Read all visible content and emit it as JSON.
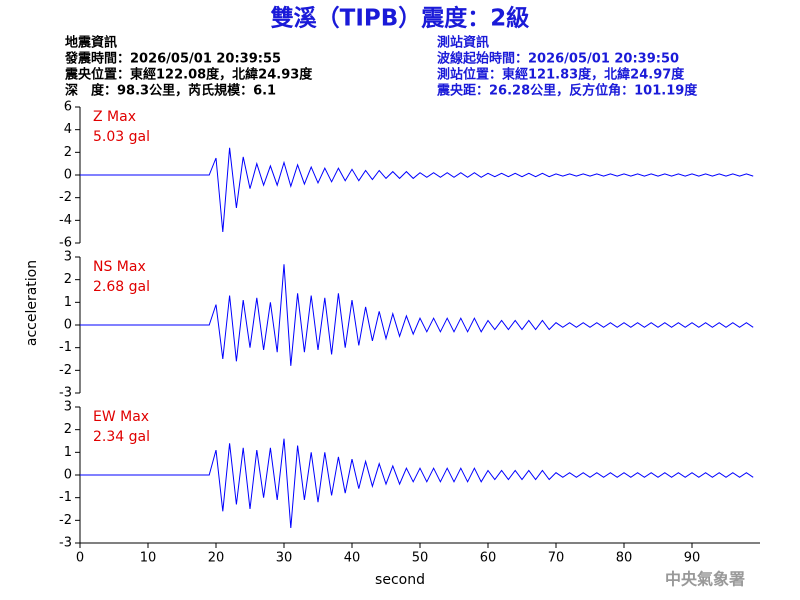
{
  "header": {
    "title": "雙溪（TIPB）震度：2級",
    "left": [
      "地震資訊",
      "發震時間：2026/05/01 20:39:55",
      "震央位置：東經122.08度，北緯24.93度",
      "深　度：98.3公里，芮氏規模：6.1"
    ],
    "right": [
      "測站資訊",
      "波線起始時間：2026/05/01 20:39:50",
      "測站位置：東經121.83度，北緯24.97度",
      "震央距：26.28公里，反方位角：101.19度"
    ]
  },
  "footer": "中央氣象署",
  "chart_data": [
    {
      "type": "line",
      "annotation": [
        "Z Max",
        "5.03 gal"
      ],
      "color": "#0000ff",
      "xlim": [
        0,
        100
      ],
      "ylim": [
        -6,
        6
      ],
      "yticks": [
        -6,
        -4,
        -2,
        0,
        2,
        4,
        6
      ],
      "x": [
        0,
        1,
        2,
        3,
        4,
        5,
        6,
        7,
        8,
        9,
        10,
        11,
        12,
        13,
        14,
        15,
        16,
        17,
        18,
        19,
        20,
        21,
        22,
        23,
        24,
        25,
        26,
        27,
        28,
        29,
        30,
        31,
        32,
        33,
        34,
        35,
        36,
        37,
        38,
        39,
        40,
        41,
        42,
        43,
        44,
        45,
        46,
        47,
        48,
        49,
        50,
        51,
        52,
        53,
        54,
        55,
        56,
        57,
        58,
        59,
        60,
        61,
        62,
        63,
        64,
        65,
        66,
        67,
        68,
        69,
        70,
        71,
        72,
        73,
        74,
        75,
        76,
        77,
        78,
        79,
        80,
        81,
        82,
        83,
        84,
        85,
        86,
        87,
        88,
        89,
        90,
        91,
        92,
        93,
        94,
        95,
        96,
        97,
        98,
        99
      ],
      "values": [
        0,
        0,
        0,
        0,
        0,
        0,
        0,
        0,
        0,
        0,
        0,
        0,
        0,
        0,
        0,
        0,
        0,
        0,
        0,
        0,
        1.5,
        -5.03,
        2.4,
        -2.9,
        1.6,
        -1.2,
        1.0,
        -0.9,
        0.8,
        -0.9,
        1.1,
        -1.0,
        0.9,
        -0.8,
        0.7,
        -0.7,
        0.6,
        -0.6,
        0.6,
        -0.5,
        0.5,
        -0.5,
        0.4,
        -0.4,
        0.4,
        -0.3,
        0.3,
        -0.3,
        0.3,
        -0.3,
        0.2,
        -0.2,
        0.2,
        -0.2,
        0.2,
        -0.2,
        0.2,
        -0.2,
        0.2,
        -0.2,
        0.15,
        -0.15,
        0.15,
        -0.15,
        0.15,
        -0.15,
        0.15,
        -0.15,
        0.15,
        -0.15,
        0.1,
        -0.1,
        0.1,
        -0.1,
        0.1,
        -0.1,
        0.1,
        -0.1,
        0.1,
        -0.1,
        0.1,
        -0.1,
        0.1,
        -0.1,
        0.1,
        -0.1,
        0.1,
        -0.1,
        0.1,
        -0.1,
        0.1,
        -0.1,
        0.1,
        -0.1,
        0.1,
        -0.1,
        0.1,
        -0.1,
        0.1,
        -0.1
      ]
    },
    {
      "type": "line",
      "annotation": [
        "NS Max",
        "2.68 gal"
      ],
      "ylabel": "acceleration",
      "color": "#0000ff",
      "xlim": [
        0,
        100
      ],
      "ylim": [
        -3,
        3
      ],
      "yticks": [
        -3,
        -2,
        -1,
        0,
        1,
        2,
        3
      ],
      "x": [
        0,
        1,
        2,
        3,
        4,
        5,
        6,
        7,
        8,
        9,
        10,
        11,
        12,
        13,
        14,
        15,
        16,
        17,
        18,
        19,
        20,
        21,
        22,
        23,
        24,
        25,
        26,
        27,
        28,
        29,
        30,
        31,
        32,
        33,
        34,
        35,
        36,
        37,
        38,
        39,
        40,
        41,
        42,
        43,
        44,
        45,
        46,
        47,
        48,
        49,
        50,
        51,
        52,
        53,
        54,
        55,
        56,
        57,
        58,
        59,
        60,
        61,
        62,
        63,
        64,
        65,
        66,
        67,
        68,
        69,
        70,
        71,
        72,
        73,
        74,
        75,
        76,
        77,
        78,
        79,
        80,
        81,
        82,
        83,
        84,
        85,
        86,
        87,
        88,
        89,
        90,
        91,
        92,
        93,
        94,
        95,
        96,
        97,
        98,
        99
      ],
      "values": [
        0,
        0,
        0,
        0,
        0,
        0,
        0,
        0,
        0,
        0,
        0,
        0,
        0,
        0,
        0,
        0,
        0,
        0,
        0,
        0,
        0.9,
        -1.5,
        1.3,
        -1.6,
        1.1,
        -1.0,
        1.2,
        -1.1,
        1.0,
        -1.2,
        2.68,
        -1.8,
        1.4,
        -1.2,
        1.3,
        -1.1,
        1.2,
        -1.3,
        1.4,
        -1.0,
        1.1,
        -0.9,
        0.8,
        -0.7,
        0.6,
        -0.6,
        0.5,
        -0.5,
        0.4,
        -0.4,
        0.3,
        -0.3,
        0.3,
        -0.3,
        0.3,
        -0.3,
        0.3,
        -0.3,
        0.3,
        -0.3,
        0.2,
        -0.2,
        0.2,
        -0.2,
        0.2,
        -0.2,
        0.2,
        -0.2,
        0.2,
        -0.2,
        0.1,
        -0.1,
        0.1,
        -0.1,
        0.1,
        -0.1,
        0.1,
        -0.1,
        0.1,
        -0.1,
        0.1,
        -0.1,
        0.1,
        -0.1,
        0.1,
        -0.1,
        0.1,
        -0.1,
        0.1,
        -0.1,
        0.1,
        -0.1,
        0.1,
        -0.1,
        0.1,
        -0.1,
        0.1,
        -0.1,
        0.1,
        -0.1
      ]
    },
    {
      "type": "line",
      "annotation": [
        "EW Max",
        "2.34 gal"
      ],
      "xlabel": "second",
      "color": "#0000ff",
      "xlim": [
        0,
        100
      ],
      "xticks": [
        0,
        10,
        20,
        30,
        40,
        50,
        60,
        70,
        80,
        90
      ],
      "ylim": [
        -3,
        3
      ],
      "yticks": [
        -3,
        -2,
        -1,
        0,
        1,
        2,
        3
      ],
      "x": [
        0,
        1,
        2,
        3,
        4,
        5,
        6,
        7,
        8,
        9,
        10,
        11,
        12,
        13,
        14,
        15,
        16,
        17,
        18,
        19,
        20,
        21,
        22,
        23,
        24,
        25,
        26,
        27,
        28,
        29,
        30,
        31,
        32,
        33,
        34,
        35,
        36,
        37,
        38,
        39,
        40,
        41,
        42,
        43,
        44,
        45,
        46,
        47,
        48,
        49,
        50,
        51,
        52,
        53,
        54,
        55,
        56,
        57,
        58,
        59,
        60,
        61,
        62,
        63,
        64,
        65,
        66,
        67,
        68,
        69,
        70,
        71,
        72,
        73,
        74,
        75,
        76,
        77,
        78,
        79,
        80,
        81,
        82,
        83,
        84,
        85,
        86,
        87,
        88,
        89,
        90,
        91,
        92,
        93,
        94,
        95,
        96,
        97,
        98,
        99
      ],
      "values": [
        0,
        0,
        0,
        0,
        0,
        0,
        0,
        0,
        0,
        0,
        0,
        0,
        0,
        0,
        0,
        0,
        0,
        0,
        0,
        0,
        1.1,
        -1.6,
        1.4,
        -1.3,
        1.2,
        -1.5,
        1.1,
        -1.0,
        1.2,
        -1.1,
        1.6,
        -2.34,
        1.3,
        -1.1,
        1.0,
        -1.2,
        1.0,
        -0.9,
        0.8,
        -0.8,
        0.7,
        -0.6,
        0.6,
        -0.5,
        0.5,
        -0.4,
        0.4,
        -0.4,
        0.3,
        -0.3,
        0.3,
        -0.3,
        0.3,
        -0.3,
        0.3,
        -0.3,
        0.3,
        -0.3,
        0.3,
        -0.3,
        0.2,
        -0.2,
        0.2,
        -0.2,
        0.2,
        -0.2,
        0.2,
        -0.2,
        0.2,
        -0.2,
        0.1,
        -0.1,
        0.1,
        -0.1,
        0.1,
        -0.1,
        0.1,
        -0.1,
        0.1,
        -0.1,
        0.1,
        -0.1,
        0.1,
        -0.1,
        0.1,
        -0.1,
        0.1,
        -0.1,
        0.1,
        -0.1,
        0.1,
        -0.1,
        0.1,
        -0.1,
        0.1,
        -0.1,
        0.1,
        -0.1,
        0.1,
        -0.1
      ]
    }
  ]
}
